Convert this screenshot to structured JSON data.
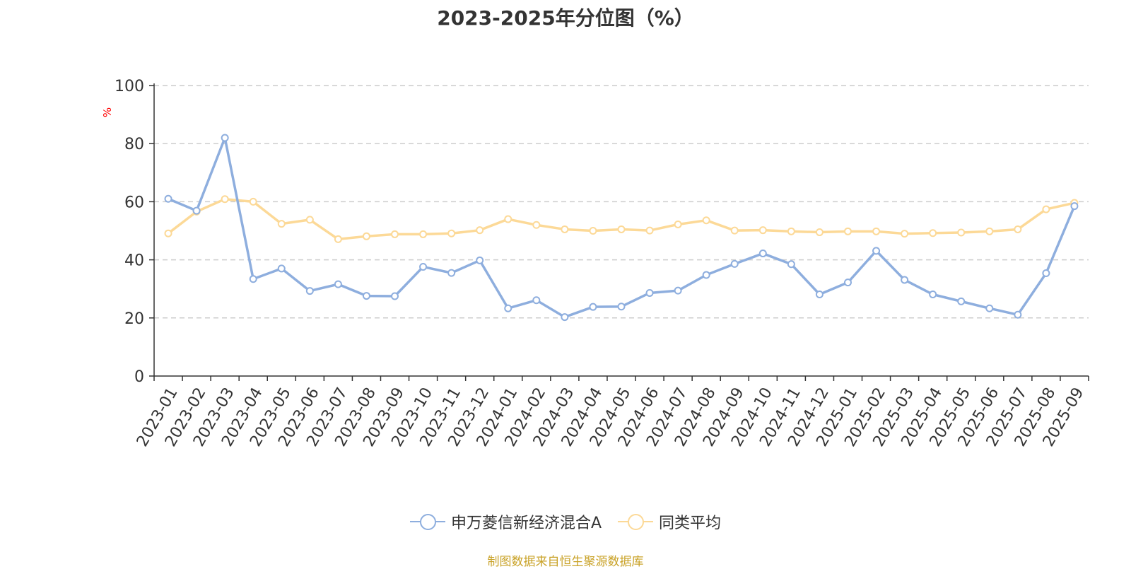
{
  "colors": {
    "series_a": "#8eaede",
    "series_b": "#fcd997",
    "ylabel": "#ff0000",
    "source": "#c9a227"
  },
  "legend_icon": "circle-line-marker",
  "chart_data": {
    "type": "line",
    "title": "2023-2025年分位图（%）",
    "ylabel": "%",
    "xlabel": "",
    "ylim": [
      0,
      100
    ],
    "yticks": [
      0,
      20,
      40,
      60,
      80,
      100
    ],
    "grid": true,
    "legend_position": "bottom-center",
    "categories": [
      "2023-01",
      "2023-02",
      "2023-03",
      "2023-04",
      "2023-05",
      "2023-06",
      "2023-07",
      "2023-08",
      "2023-09",
      "2023-10",
      "2023-11",
      "2023-12",
      "2024-01",
      "2024-02",
      "2024-03",
      "2024-04",
      "2024-05",
      "2024-06",
      "2024-07",
      "2024-08",
      "2024-09",
      "2024-10",
      "2024-11",
      "2024-12",
      "2025-01",
      "2025-02",
      "2025-03",
      "2025-04",
      "2025-05",
      "2025-06",
      "2025-07",
      "2025-08",
      "2025-09"
    ],
    "series": [
      {
        "name": "申万菱信新经济混合A",
        "values": [
          61.0,
          56.9,
          82.0,
          33.4,
          37.0,
          29.3,
          31.6,
          27.6,
          27.5,
          37.6,
          35.5,
          39.8,
          23.3,
          26.1,
          20.3,
          23.8,
          23.9,
          28.6,
          29.4,
          34.8,
          38.6,
          42.2,
          38.5,
          28.1,
          32.2,
          43.1,
          33.1,
          28.1,
          25.7,
          23.3,
          21.1,
          35.4,
          58.5
        ]
      },
      {
        "name": "同类平均",
        "values": [
          49.1,
          56.6,
          60.9,
          60.0,
          52.4,
          53.8,
          47.1,
          48.1,
          48.8,
          48.8,
          49.1,
          50.2,
          54.0,
          52.0,
          50.5,
          50.0,
          50.5,
          50.1,
          52.2,
          53.6,
          50.1,
          50.2,
          49.8,
          49.5,
          49.8,
          49.8,
          49.0,
          49.2,
          49.4,
          49.8,
          50.5,
          57.4,
          59.6
        ]
      }
    ]
  },
  "source_text": "制图数据来自恒生聚源数据库"
}
